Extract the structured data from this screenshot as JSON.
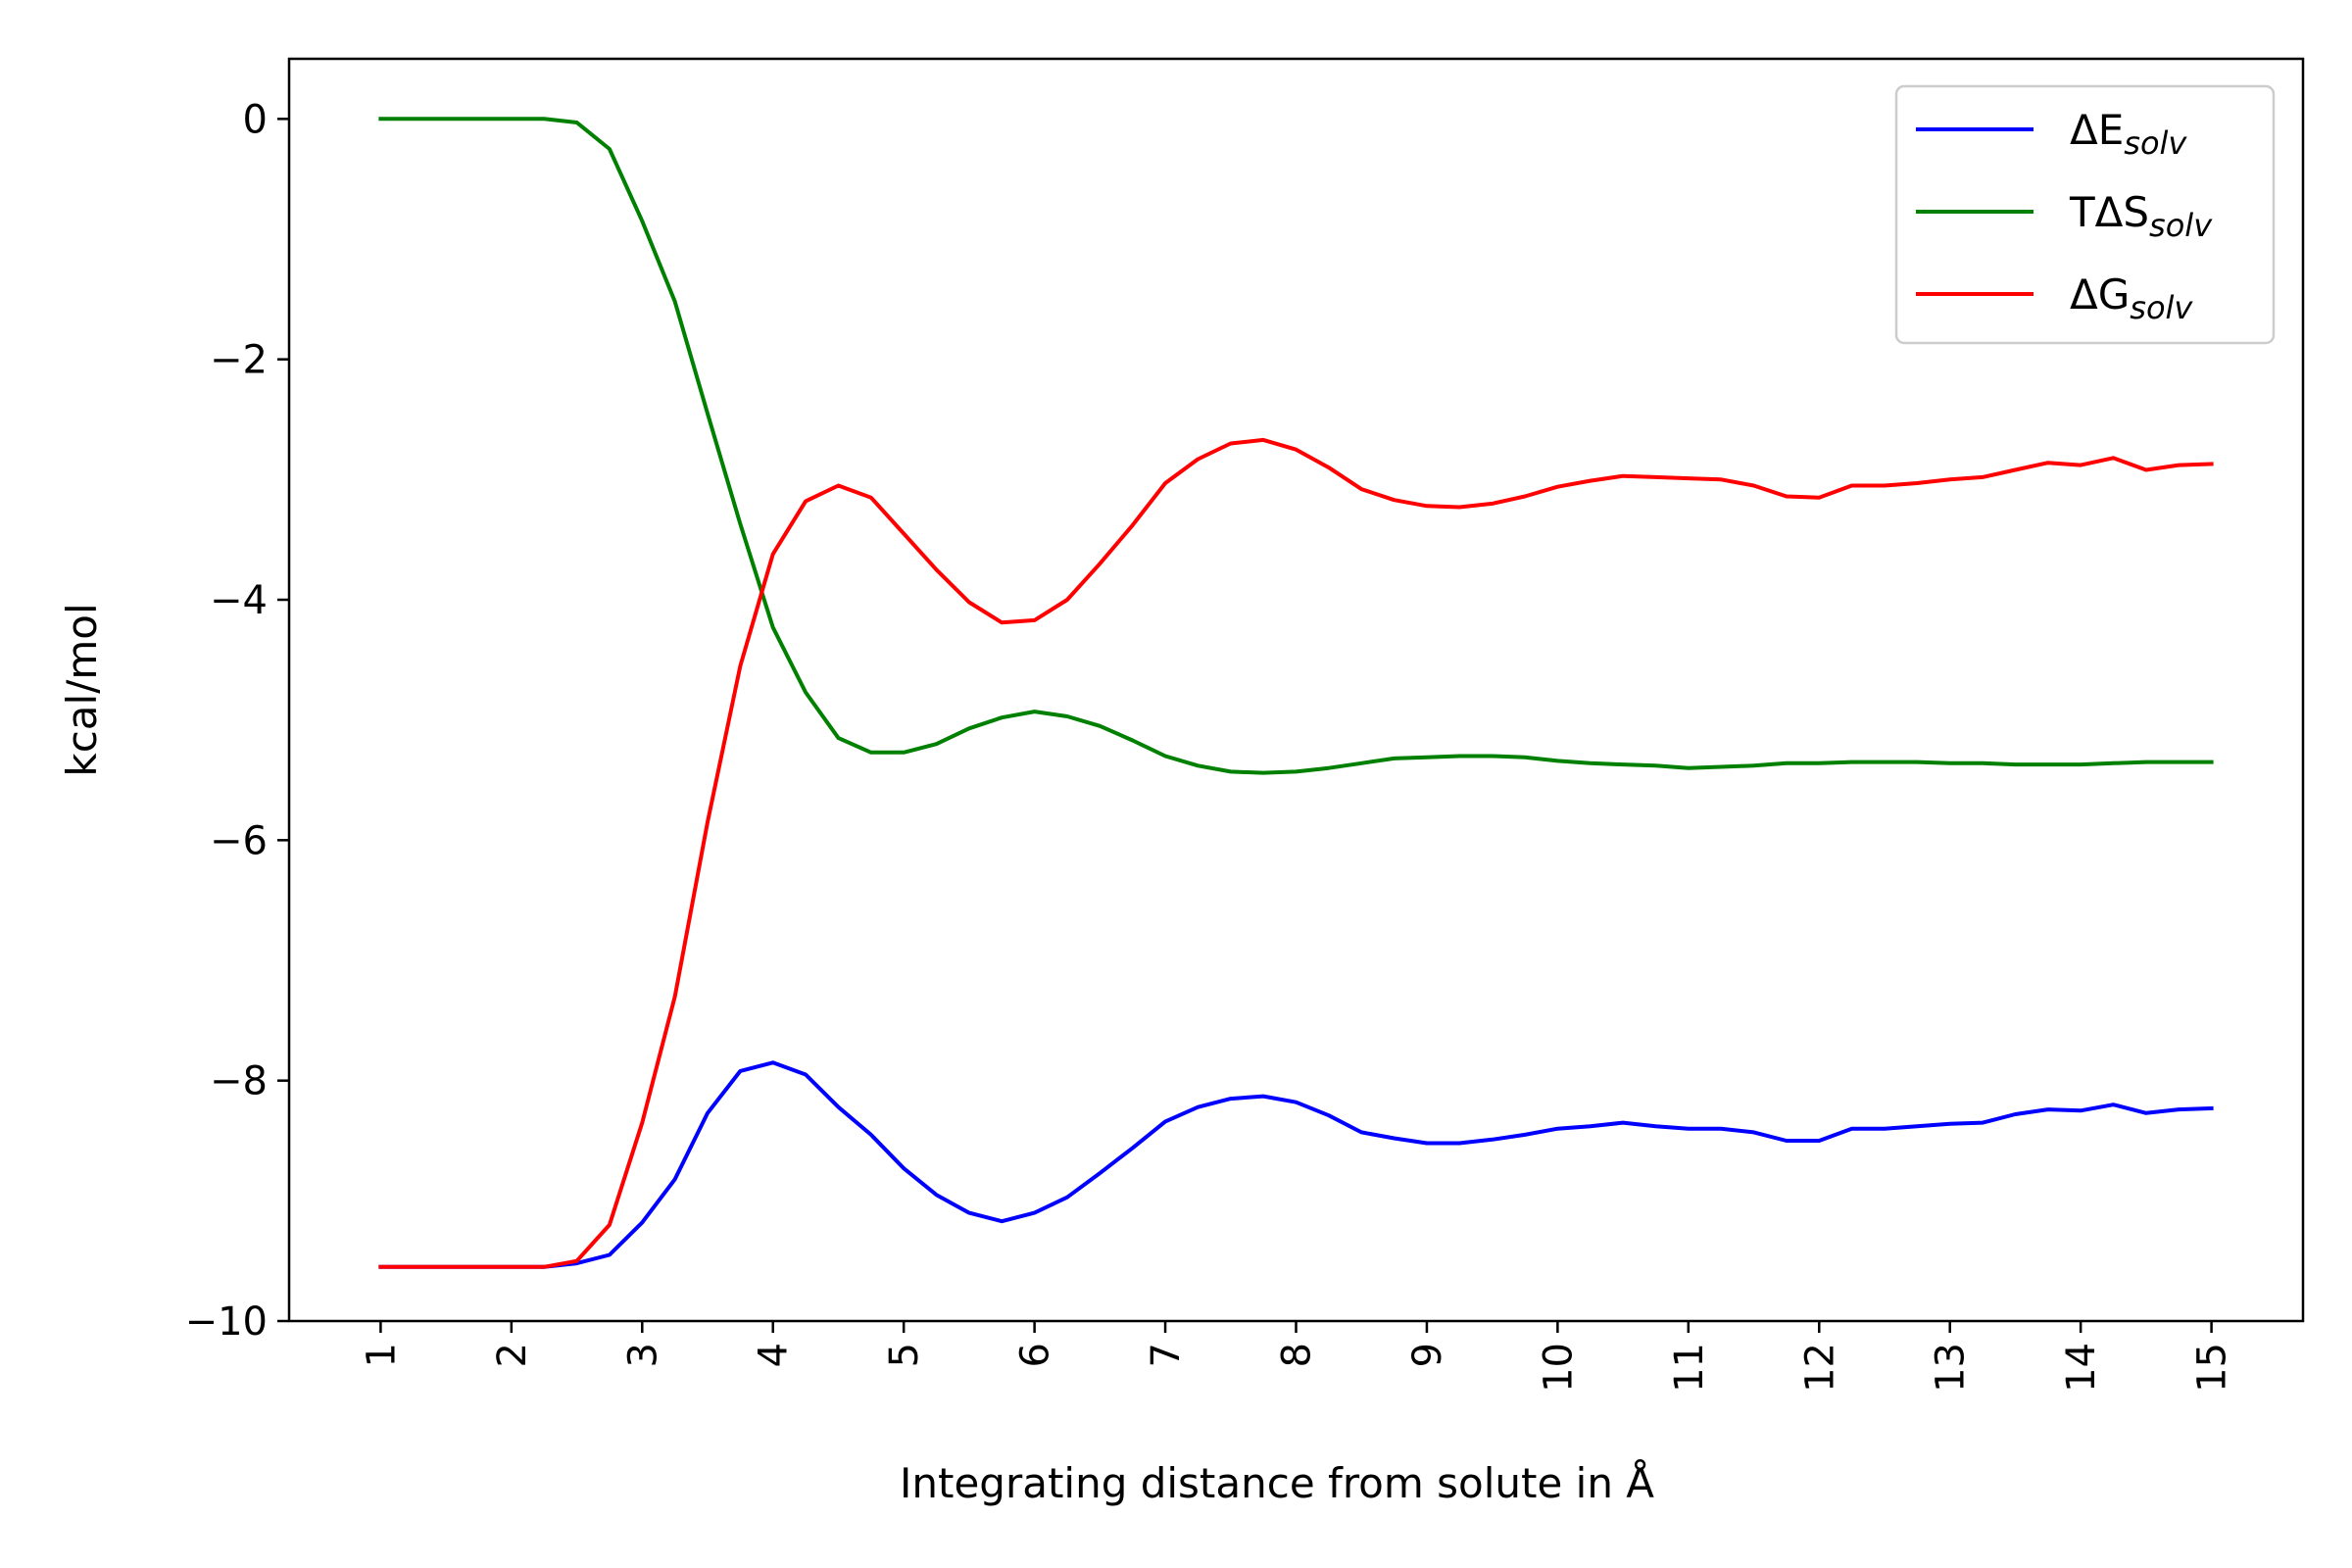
{
  "chart_data": {
    "type": "line",
    "title": "",
    "xlabel": "Integrating distance from solute in Å",
    "ylabel": "kcal/mol",
    "xlim": [
      0.3,
      15.7
    ],
    "ylim": [
      -10,
      0.5
    ],
    "xticks": [
      "1",
      "2",
      "3",
      "4",
      "5",
      "6",
      "7",
      "8",
      "9",
      "10",
      "11",
      "12",
      "13",
      "14",
      "15"
    ],
    "yticks": [
      "0",
      "−2",
      "−4",
      "−6",
      "−8",
      "−10"
    ],
    "grid": false,
    "legend_position": "top-right",
    "x": [
      1.0,
      1.25,
      1.5,
      1.75,
      2.0,
      2.25,
      2.5,
      2.75,
      3.0,
      3.25,
      3.5,
      3.75,
      4.0,
      4.25,
      4.5,
      4.75,
      5.0,
      5.25,
      5.5,
      5.75,
      6.0,
      6.25,
      6.5,
      6.75,
      7.0,
      7.25,
      7.5,
      7.75,
      8.0,
      8.25,
      8.5,
      8.75,
      9.0,
      9.25,
      9.5,
      9.75,
      10.0,
      10.25,
      10.5,
      10.75,
      11.0,
      11.25,
      11.5,
      11.75,
      12.0,
      12.25,
      12.5,
      12.75,
      13.0,
      13.25,
      13.5,
      13.75,
      14.0,
      14.25,
      14.5,
      14.75,
      15.0
    ],
    "series": [
      {
        "name": "ΔE",
        "name_sub": "solv",
        "color": "#0000ff",
        "values": [
          -9.55,
          -9.55,
          -9.55,
          -9.55,
          -9.55,
          -9.55,
          -9.52,
          -9.45,
          -9.18,
          -8.82,
          -8.27,
          -7.92,
          -7.85,
          -7.95,
          -8.22,
          -8.45,
          -8.73,
          -8.95,
          -9.1,
          -9.17,
          -9.1,
          -8.97,
          -8.77,
          -8.56,
          -8.34,
          -8.22,
          -8.15,
          -8.13,
          -8.18,
          -8.29,
          -8.43,
          -8.48,
          -8.52,
          -8.52,
          -8.49,
          -8.45,
          -8.4,
          -8.38,
          -8.35,
          -8.38,
          -8.4,
          -8.4,
          -8.43,
          -8.5,
          -8.5,
          -8.4,
          -8.4,
          -8.38,
          -8.36,
          -8.35,
          -8.28,
          -8.24,
          -8.25,
          -8.2,
          -8.27,
          -8.24,
          -8.23
        ]
      },
      {
        "name": "TΔS",
        "name_sub": "solv",
        "color": "#008000",
        "values": [
          0,
          0,
          0,
          0,
          0,
          0,
          -0.03,
          -0.25,
          -0.85,
          -1.52,
          -2.45,
          -3.37,
          -4.23,
          -4.77,
          -5.15,
          -5.27,
          -5.27,
          -5.2,
          -5.07,
          -4.98,
          -4.93,
          -4.97,
          -5.05,
          -5.17,
          -5.3,
          -5.38,
          -5.43,
          -5.44,
          -5.43,
          -5.4,
          -5.36,
          -5.32,
          -5.31,
          -5.3,
          -5.3,
          -5.31,
          -5.34,
          -5.36,
          -5.37,
          -5.38,
          -5.4,
          -5.39,
          -5.38,
          -5.36,
          -5.36,
          -5.35,
          -5.35,
          -5.35,
          -5.36,
          -5.36,
          -5.37,
          -5.37,
          -5.37,
          -5.36,
          -5.35,
          -5.35,
          -5.35
        ]
      },
      {
        "name": "ΔG",
        "name_sub": "solv",
        "color": "#ff0000",
        "values": [
          -9.55,
          -9.55,
          -9.55,
          -9.55,
          -9.55,
          -9.55,
          -9.5,
          -9.2,
          -8.35,
          -7.3,
          -5.85,
          -4.55,
          -3.62,
          -3.18,
          -3.05,
          -3.15,
          -3.45,
          -3.75,
          -4.02,
          -4.19,
          -4.17,
          -4.0,
          -3.7,
          -3.38,
          -3.03,
          -2.83,
          -2.7,
          -2.67,
          -2.75,
          -2.9,
          -3.08,
          -3.17,
          -3.22,
          -3.23,
          -3.2,
          -3.14,
          -3.06,
          -3.01,
          -2.97,
          -2.98,
          -2.99,
          -3.0,
          -3.05,
          -3.14,
          -3.15,
          -3.05,
          -3.05,
          -3.03,
          -3.0,
          -2.98,
          -2.92,
          -2.86,
          -2.88,
          -2.82,
          -2.92,
          -2.88,
          -2.87
        ]
      }
    ]
  }
}
